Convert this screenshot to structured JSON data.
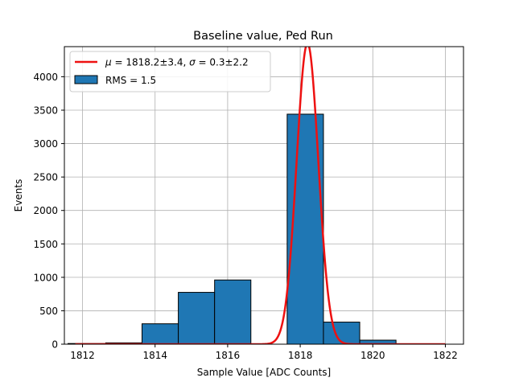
{
  "chart_data": {
    "type": "bar",
    "title": "Baseline value, Ped Run",
    "xlabel": "Sample Value [ADC Counts]",
    "ylabel": "Events",
    "xlim": [
      1811.5,
      1822.5
    ],
    "ylim": [
      0,
      4450
    ],
    "xticks": [
      1812,
      1814,
      1816,
      1818,
      1820,
      1822
    ],
    "yticks": [
      0,
      500,
      1000,
      1500,
      2000,
      2500,
      3000,
      3500,
      4000
    ],
    "grid": true,
    "legend_position": "top-left",
    "histogram": {
      "name": "RMS = 1.5",
      "color": "#1f77b4",
      "edgecolor": "#000000",
      "bin_edges": [
        1811.6,
        1812.64,
        1813.64,
        1814.64,
        1815.64,
        1816.64,
        1817.64,
        1818.64,
        1819.64,
        1820.64
      ],
      "bins": [
        {
          "left": 1811.6,
          "right": 1812.64,
          "count": 10
        },
        {
          "left": 1812.64,
          "right": 1813.64,
          "count": 20
        },
        {
          "left": 1813.64,
          "right": 1814.64,
          "count": 305
        },
        {
          "left": 1814.64,
          "right": 1815.64,
          "count": 775
        },
        {
          "left": 1815.64,
          "right": 1816.64,
          "count": 960
        },
        {
          "left": 1816.64,
          "right": 1817.64,
          "count": 0
        },
        {
          "left": 1817.64,
          "right": 1818.64,
          "count": 3440
        },
        {
          "left": 1818.64,
          "right": 1819.64,
          "count": 330
        },
        {
          "left": 1819.64,
          "right": 1820.64,
          "count": 60
        }
      ]
    },
    "fit": {
      "name": "μ = 1818.2±3.4, σ = 0.3±2.2",
      "legend_label": "$\\mu = 1818.2 \\pm 3.4$, $\\sigma = 0.3 \\pm 2.2$",
      "type": "gaussian",
      "mu": 1818.2,
      "sigma": 0.3,
      "amplitude": 4500,
      "x_range": [
        1811.8,
        1822.0
      ],
      "color": "#ee1111"
    },
    "legend": {
      "fit_mu_symbol": "μ",
      "fit_mu_text": " = 1818.2±3.4, ",
      "fit_sigma_symbol": "σ",
      "fit_sigma_text": " = 0.3±2.2",
      "hist_label": "RMS = 1.5"
    }
  }
}
